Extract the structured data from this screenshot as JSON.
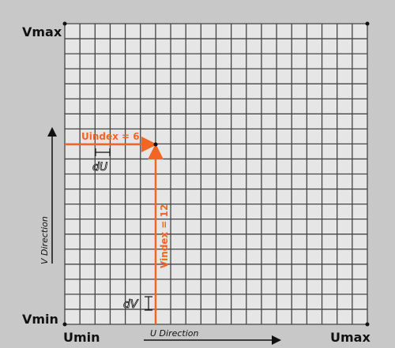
{
  "labels": {
    "vmax": "Vmax",
    "vmin": "Vmin",
    "umin": "Umin",
    "umax": "Umax"
  },
  "u_index": "Uindex = 6",
  "v_index": "Vindex = 12",
  "du": "dU",
  "dv": "dV",
  "u_direction": "U Direction",
  "v_direction": "V Direction"
}
